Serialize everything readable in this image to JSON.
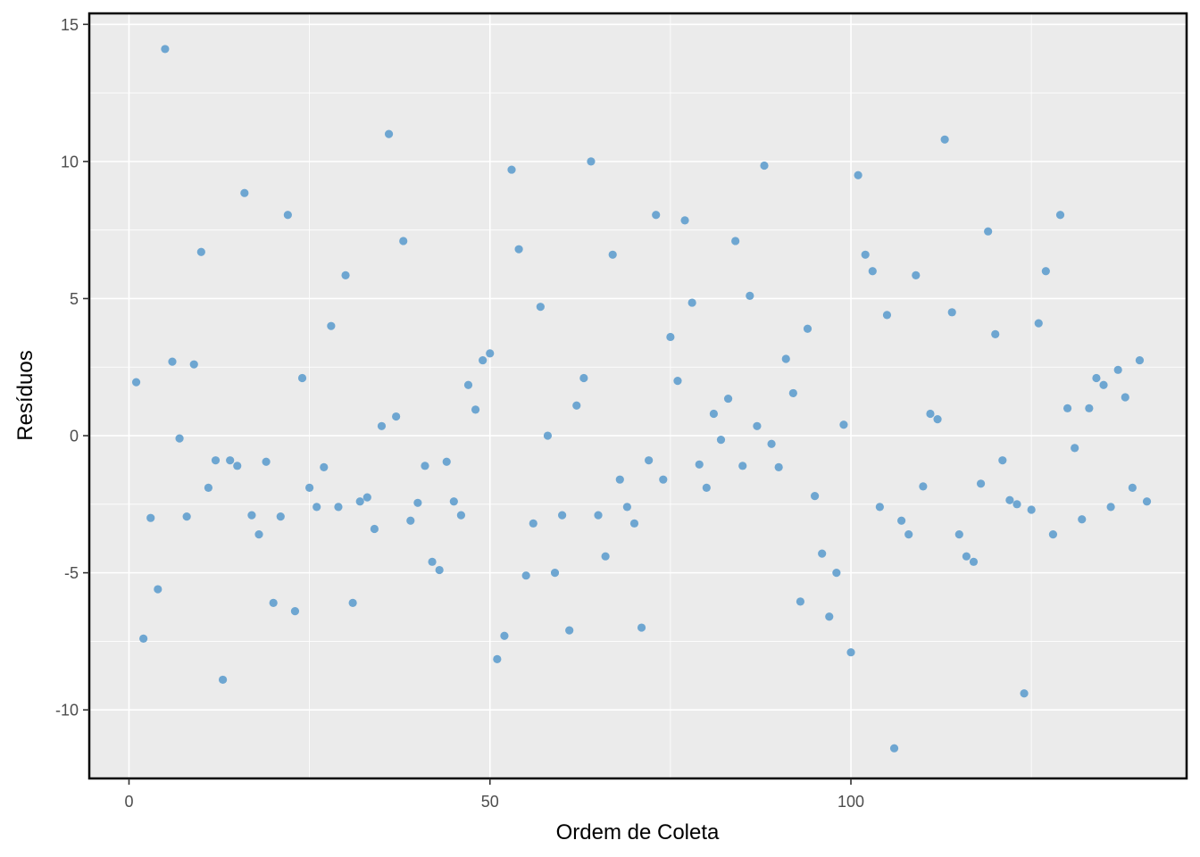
{
  "chart_data": {
    "type": "scatter",
    "title": "",
    "xlabel": "Ordem de Coleta",
    "ylabel": "Resíduos",
    "xlim": [
      -5.5,
      146.5
    ],
    "ylim": [
      -12.5,
      15.4
    ],
    "x_ticks": [
      0,
      50,
      100
    ],
    "x_tick_labels": [
      "0",
      "50",
      "100"
    ],
    "y_ticks": [
      -10,
      -5,
      0,
      5,
      10,
      15
    ],
    "y_tick_labels": [
      "-10",
      "-5",
      "0",
      "5",
      "10",
      "15"
    ],
    "grid": true,
    "legend": "none",
    "colors": {
      "panel": "#ebebeb",
      "grid": "#ffffff",
      "point": "#6ea6d1",
      "border": "#000000"
    },
    "x": [
      1,
      2,
      3,
      4,
      5,
      6,
      7,
      8,
      9,
      10,
      11,
      12,
      13,
      14,
      15,
      16,
      17,
      18,
      19,
      20,
      21,
      22,
      23,
      24,
      25,
      26,
      27,
      28,
      29,
      30,
      31,
      32,
      33,
      34,
      35,
      36,
      37,
      38,
      39,
      40,
      41,
      42,
      43,
      44,
      45,
      46,
      47,
      48,
      49,
      50,
      51,
      52,
      53,
      54,
      55,
      56,
      57,
      58,
      59,
      60,
      61,
      62,
      63,
      64,
      65,
      66,
      67,
      68,
      69,
      70,
      71,
      72,
      73,
      74,
      75,
      76,
      77,
      78,
      79,
      80,
      81,
      82,
      83,
      84,
      85,
      86,
      87,
      88,
      89,
      90,
      91,
      92,
      93,
      94,
      95,
      96,
      97,
      98,
      99,
      100,
      101,
      102,
      103,
      104,
      105,
      106,
      107,
      108,
      109,
      110,
      111,
      112,
      113,
      114,
      115,
      116,
      117,
      118,
      119,
      120,
      121,
      122,
      123,
      124,
      125,
      126,
      127,
      128,
      129,
      130,
      131,
      132,
      133,
      134,
      135,
      136,
      137,
      138,
      139,
      140,
      141
    ],
    "y": [
      1.95,
      -7.4,
      -3.0,
      -5.6,
      14.1,
      2.7,
      -0.1,
      -2.95,
      2.6,
      6.7,
      -1.9,
      -0.9,
      -8.9,
      -0.9,
      -1.1,
      8.85,
      -2.9,
      -3.6,
      -0.95,
      -6.1,
      -2.95,
      8.05,
      -6.4,
      2.1,
      -1.9,
      -2.6,
      -1.15,
      4.0,
      -2.6,
      5.85,
      -6.1,
      -2.4,
      -2.25,
      -3.4,
      0.35,
      11.0,
      0.7,
      7.1,
      -3.1,
      -2.45,
      -1.1,
      -4.6,
      -4.9,
      -0.95,
      -2.4,
      -2.9,
      1.85,
      0.95,
      2.75,
      3.0,
      -8.15,
      -7.3,
      9.7,
      6.8,
      -5.1,
      -3.2,
      4.7,
      0.0,
      -5.0,
      -2.9,
      -7.1,
      1.1,
      2.1,
      10.0,
      -2.9,
      -4.4,
      6.6,
      -1.6,
      -2.6,
      -3.2,
      -7.0,
      -0.9,
      8.05,
      -1.6,
      3.6,
      2.0,
      7.85,
      4.85,
      -1.05,
      -1.9,
      0.8,
      -0.15,
      1.35,
      7.1,
      -1.1,
      5.1,
      0.35,
      9.85,
      -0.3,
      -1.15,
      2.8,
      1.55,
      -6.05,
      3.9,
      -2.2,
      -4.3,
      -6.6,
      -5.0,
      0.4,
      -7.9,
      9.5,
      6.6,
      6.0,
      -2.6,
      4.4,
      -11.4,
      -3.1,
      -3.6,
      5.85,
      -1.85,
      0.8,
      0.6,
      10.8,
      4.5,
      -3.6,
      -4.4,
      -4.6,
      -1.75,
      7.45,
      3.7,
      -0.9,
      -2.35,
      -2.5,
      -9.4,
      -2.7,
      4.1,
      6.0,
      -3.6,
      8.05,
      1.0,
      -0.45,
      -3.05,
      1.0,
      2.1,
      1.85,
      -2.6,
      2.4,
      1.4,
      -1.9,
      2.75,
      -2.4
    ]
  }
}
